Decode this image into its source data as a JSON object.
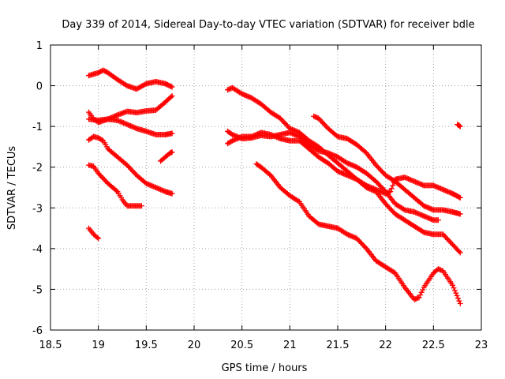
{
  "chart_data": {
    "type": "scatter",
    "title": "Day 339 of 2014, Sidereal Day-to-day VTEC variation (SDTVAR) for receiver bdle",
    "xlabel": "GPS time / hours",
    "ylabel": "SDTVAR / TECUs",
    "xlim": [
      18.5,
      23
    ],
    "ylim": [
      -6,
      1
    ],
    "x_ticks": [
      18.5,
      19,
      19.5,
      20,
      20.5,
      21,
      21.5,
      22,
      22.5,
      23
    ],
    "y_ticks": [
      1,
      0,
      -1,
      -2,
      -3,
      -4,
      -5,
      -6
    ],
    "x_tick_labels": [
      "18.5",
      "19",
      "19.5",
      "20",
      "20.5",
      "21",
      "21.5",
      "22",
      "22.5",
      "23"
    ],
    "y_tick_labels": [
      "1",
      "0",
      "-1",
      "-2",
      "-3",
      "-4",
      "-5",
      "-6"
    ],
    "grid": true,
    "marker": "+",
    "color": "#ff0000",
    "series": [
      {
        "name": "s1",
        "points": [
          [
            18.9,
            0.25
          ],
          [
            19.0,
            0.32
          ],
          [
            19.05,
            0.38
          ],
          [
            19.1,
            0.32
          ],
          [
            19.2,
            0.15
          ],
          [
            19.3,
            0.0
          ],
          [
            19.4,
            -0.08
          ],
          [
            19.5,
            0.05
          ],
          [
            19.6,
            0.1
          ],
          [
            19.7,
            0.05
          ],
          [
            19.77,
            -0.03
          ]
        ]
      },
      {
        "name": "s2",
        "points": [
          [
            18.9,
            -0.65
          ],
          [
            18.95,
            -0.82
          ],
          [
            19.0,
            -0.9
          ],
          [
            19.1,
            -0.82
          ],
          [
            19.2,
            -0.72
          ],
          [
            19.3,
            -0.63
          ],
          [
            19.4,
            -0.66
          ],
          [
            19.5,
            -0.62
          ],
          [
            19.6,
            -0.6
          ],
          [
            19.7,
            -0.4
          ],
          [
            19.77,
            -0.25
          ]
        ]
      },
      {
        "name": "s3",
        "points": [
          [
            18.9,
            -0.82
          ],
          [
            19.0,
            -0.85
          ],
          [
            19.1,
            -0.82
          ],
          [
            19.2,
            -0.85
          ],
          [
            19.3,
            -0.95
          ],
          [
            19.4,
            -1.05
          ],
          [
            19.5,
            -1.12
          ],
          [
            19.6,
            -1.2
          ],
          [
            19.7,
            -1.2
          ],
          [
            19.77,
            -1.17
          ]
        ]
      },
      {
        "name": "s4",
        "points": [
          [
            18.9,
            -1.33
          ],
          [
            18.95,
            -1.25
          ],
          [
            19.0,
            -1.28
          ],
          [
            19.05,
            -1.35
          ],
          [
            19.1,
            -1.55
          ],
          [
            19.2,
            -1.75
          ],
          [
            19.3,
            -1.95
          ],
          [
            19.4,
            -2.2
          ],
          [
            19.5,
            -2.4
          ],
          [
            19.6,
            -2.5
          ],
          [
            19.7,
            -2.6
          ],
          [
            19.77,
            -2.65
          ]
        ]
      },
      {
        "name": "s5",
        "points": [
          [
            18.9,
            -1.95
          ],
          [
            18.95,
            -1.98
          ],
          [
            19.0,
            -2.15
          ],
          [
            19.1,
            -2.4
          ],
          [
            19.2,
            -2.6
          ],
          [
            19.25,
            -2.8
          ],
          [
            19.3,
            -2.95
          ],
          [
            19.4,
            -2.95
          ],
          [
            19.45,
            -2.95
          ]
        ]
      },
      {
        "name": "s6",
        "points": [
          [
            19.65,
            -1.85
          ],
          [
            19.7,
            -1.75
          ],
          [
            19.75,
            -1.65
          ],
          [
            19.77,
            -1.63
          ]
        ]
      },
      {
        "name": "s7",
        "points": [
          [
            18.9,
            -3.5
          ],
          [
            18.95,
            -3.65
          ],
          [
            19.0,
            -3.75
          ]
        ]
      },
      {
        "name": "s8",
        "points": [
          [
            20.35,
            -0.1
          ],
          [
            20.4,
            -0.05
          ],
          [
            20.5,
            -0.2
          ],
          [
            20.6,
            -0.3
          ],
          [
            20.7,
            -0.45
          ],
          [
            20.8,
            -0.65
          ],
          [
            20.9,
            -0.8
          ],
          [
            21.0,
            -1.05
          ],
          [
            21.1,
            -1.15
          ],
          [
            21.2,
            -1.35
          ],
          [
            21.3,
            -1.5
          ],
          [
            21.4,
            -1.7
          ],
          [
            21.5,
            -1.9
          ],
          [
            21.6,
            -2.1
          ],
          [
            21.7,
            -2.3
          ],
          [
            21.8,
            -2.45
          ],
          [
            21.9,
            -2.55
          ],
          [
            22.0,
            -2.65
          ],
          [
            22.05,
            -2.6
          ],
          [
            22.1,
            -2.3
          ],
          [
            22.2,
            -2.25
          ],
          [
            22.3,
            -2.35
          ],
          [
            22.4,
            -2.45
          ],
          [
            22.5,
            -2.45
          ],
          [
            22.6,
            -2.55
          ],
          [
            22.7,
            -2.65
          ],
          [
            22.78,
            -2.75
          ]
        ]
      },
      {
        "name": "s9",
        "points": [
          [
            20.35,
            -1.12
          ],
          [
            20.4,
            -1.2
          ],
          [
            20.5,
            -1.3
          ],
          [
            20.6,
            -1.28
          ],
          [
            20.7,
            -1.22
          ],
          [
            20.8,
            -1.25
          ],
          [
            20.9,
            -1.2
          ],
          [
            21.0,
            -1.15
          ],
          [
            21.1,
            -1.25
          ],
          [
            21.2,
            -1.45
          ],
          [
            21.3,
            -1.6
          ],
          [
            21.4,
            -1.65
          ],
          [
            21.5,
            -1.75
          ],
          [
            21.6,
            -1.9
          ],
          [
            21.7,
            -2.0
          ],
          [
            21.8,
            -2.15
          ],
          [
            21.9,
            -2.35
          ],
          [
            22.0,
            -2.6
          ],
          [
            22.1,
            -2.9
          ],
          [
            22.2,
            -3.05
          ],
          [
            22.3,
            -3.1
          ],
          [
            22.4,
            -3.2
          ],
          [
            22.5,
            -3.3
          ],
          [
            22.55,
            -3.3
          ]
        ]
      },
      {
        "name": "s10",
        "points": [
          [
            20.35,
            -1.42
          ],
          [
            20.4,
            -1.35
          ],
          [
            20.5,
            -1.25
          ],
          [
            20.6,
            -1.25
          ],
          [
            20.7,
            -1.15
          ],
          [
            20.8,
            -1.2
          ],
          [
            20.9,
            -1.3
          ],
          [
            21.0,
            -1.35
          ],
          [
            21.1,
            -1.35
          ],
          [
            21.2,
            -1.55
          ],
          [
            21.3,
            -1.75
          ],
          [
            21.4,
            -1.9
          ],
          [
            21.5,
            -2.1
          ],
          [
            21.6,
            -2.2
          ],
          [
            21.7,
            -2.3
          ],
          [
            21.8,
            -2.5
          ],
          [
            21.9,
            -2.6
          ],
          [
            22.0,
            -2.9
          ],
          [
            22.1,
            -3.15
          ],
          [
            22.2,
            -3.3
          ],
          [
            22.3,
            -3.45
          ],
          [
            22.4,
            -3.6
          ],
          [
            22.5,
            -3.65
          ],
          [
            22.6,
            -3.65
          ],
          [
            22.7,
            -3.9
          ],
          [
            22.78,
            -4.1
          ]
        ]
      },
      {
        "name": "s11",
        "points": [
          [
            20.65,
            -1.92
          ],
          [
            20.7,
            -2.0
          ],
          [
            20.8,
            -2.2
          ],
          [
            20.9,
            -2.5
          ],
          [
            21.0,
            -2.7
          ],
          [
            21.1,
            -2.85
          ],
          [
            21.2,
            -3.2
          ],
          [
            21.3,
            -3.4
          ],
          [
            21.4,
            -3.45
          ],
          [
            21.5,
            -3.5
          ],
          [
            21.6,
            -3.65
          ],
          [
            21.7,
            -3.75
          ],
          [
            21.8,
            -4.0
          ],
          [
            21.9,
            -4.3
          ],
          [
            22.0,
            -4.45
          ],
          [
            22.1,
            -4.6
          ],
          [
            22.2,
            -4.95
          ],
          [
            22.3,
            -5.25
          ],
          [
            22.35,
            -5.2
          ],
          [
            22.4,
            -4.95
          ],
          [
            22.5,
            -4.6
          ],
          [
            22.55,
            -4.5
          ],
          [
            22.6,
            -4.55
          ],
          [
            22.7,
            -4.9
          ],
          [
            22.78,
            -5.35
          ]
        ]
      },
      {
        "name": "s12",
        "points": [
          [
            21.25,
            -0.75
          ],
          [
            21.3,
            -0.8
          ],
          [
            21.4,
            -1.05
          ],
          [
            21.5,
            -1.25
          ],
          [
            21.6,
            -1.3
          ],
          [
            21.7,
            -1.45
          ],
          [
            21.8,
            -1.65
          ],
          [
            21.9,
            -1.95
          ],
          [
            22.0,
            -2.2
          ],
          [
            22.1,
            -2.35
          ],
          [
            22.2,
            -2.55
          ],
          [
            22.3,
            -2.75
          ],
          [
            22.4,
            -2.95
          ],
          [
            22.5,
            -3.05
          ],
          [
            22.6,
            -3.05
          ],
          [
            22.7,
            -3.1
          ],
          [
            22.78,
            -3.15
          ]
        ]
      },
      {
        "name": "s13",
        "points": [
          [
            22.75,
            -0.95
          ],
          [
            22.78,
            -1.0
          ]
        ]
      }
    ]
  }
}
